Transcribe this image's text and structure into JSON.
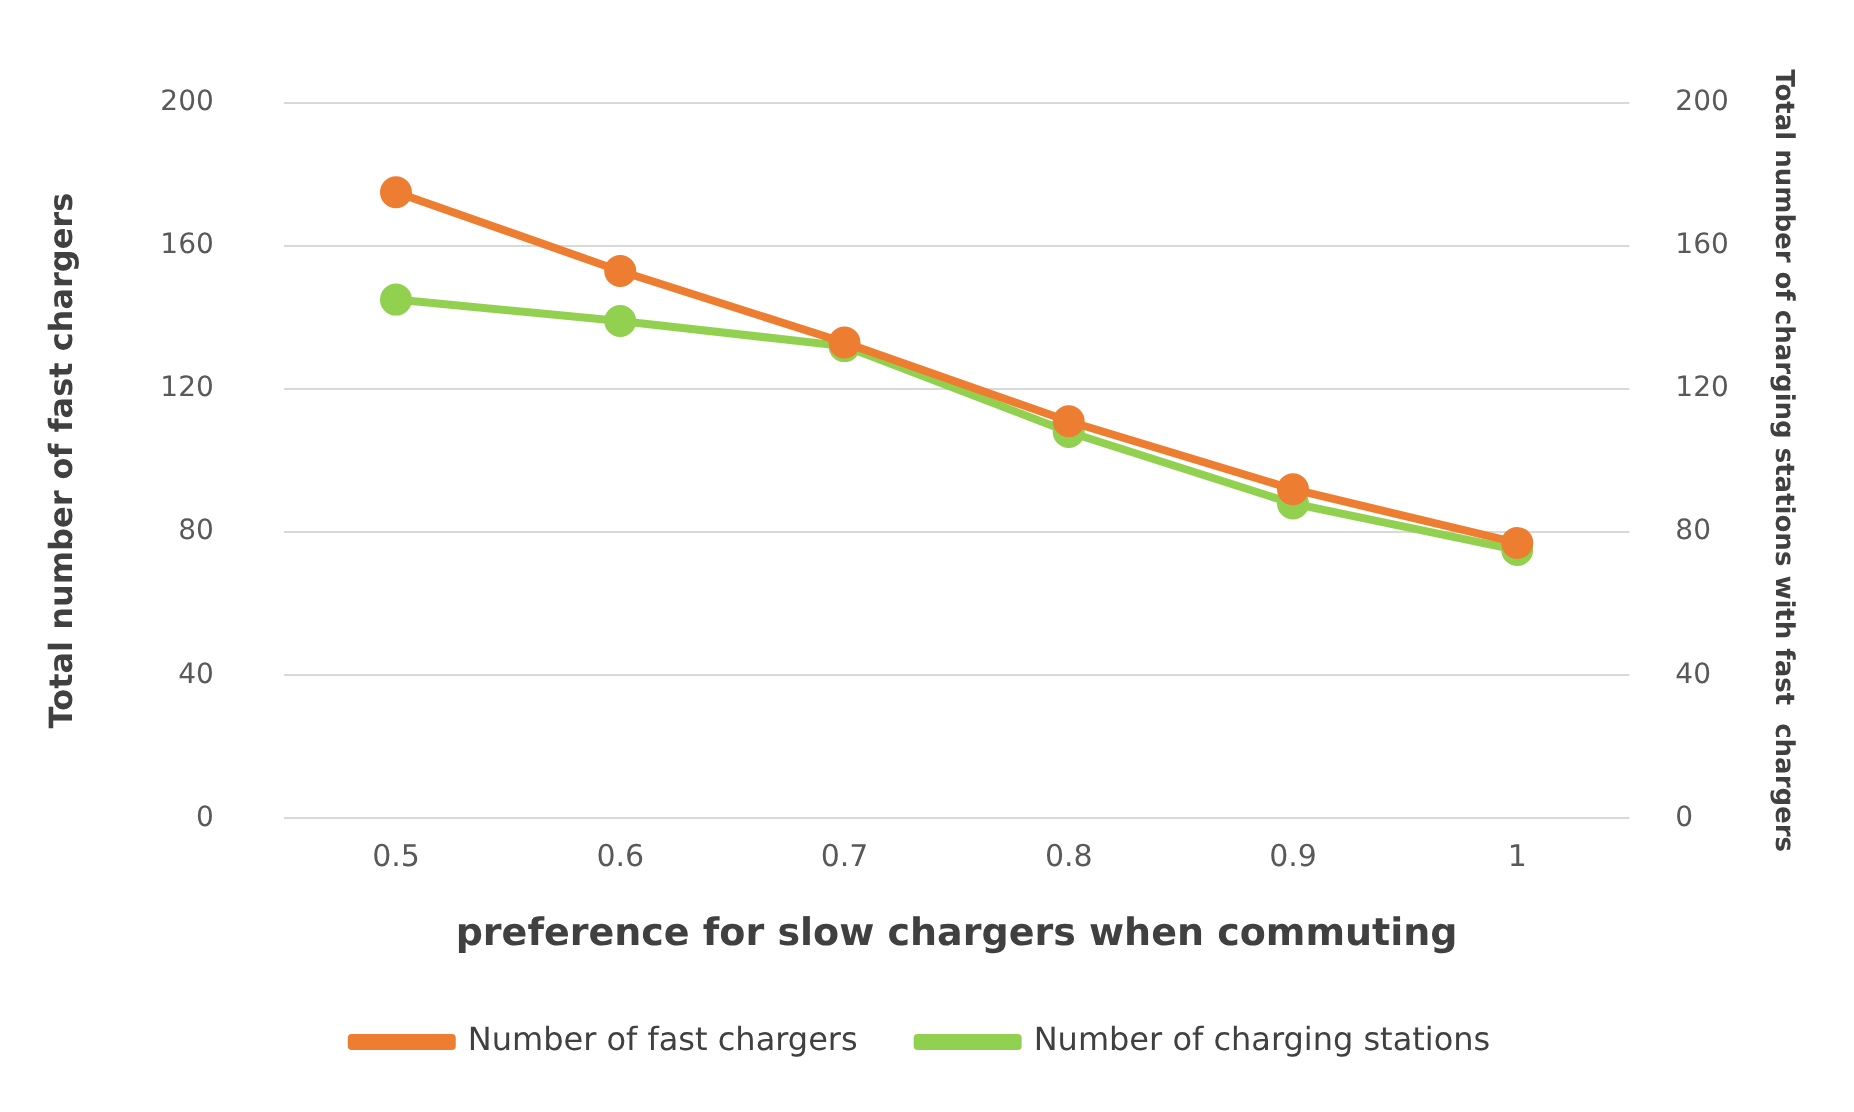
{
  "chart_data": {
    "type": "line",
    "xlabel": "preference for slow chargers when commuting",
    "ylabel": "Total number of fast chargers",
    "y2label": "Total number of charging stations with fast  chargers",
    "categories": [
      "0.5",
      "0.6",
      "0.7",
      "0.8",
      "0.9",
      "1"
    ],
    "series": [
      {
        "name": "Number of fast chargers",
        "color": "#ed7d31",
        "values": [
          175,
          153,
          133,
          111,
          92,
          77
        ]
      },
      {
        "name": "Number of charging stations",
        "color": "#92d050",
        "values": [
          145,
          139,
          132,
          108,
          88,
          75
        ]
      }
    ],
    "ylim": [
      0,
      200
    ],
    "yticks": [
      0,
      40,
      80,
      120,
      160,
      200
    ],
    "y2lim": [
      0,
      200
    ],
    "y2ticks": [
      0,
      40,
      80,
      120,
      160,
      200
    ],
    "grid": "y",
    "legend": "bottom",
    "marker": "circle",
    "line_style": "solid"
  }
}
